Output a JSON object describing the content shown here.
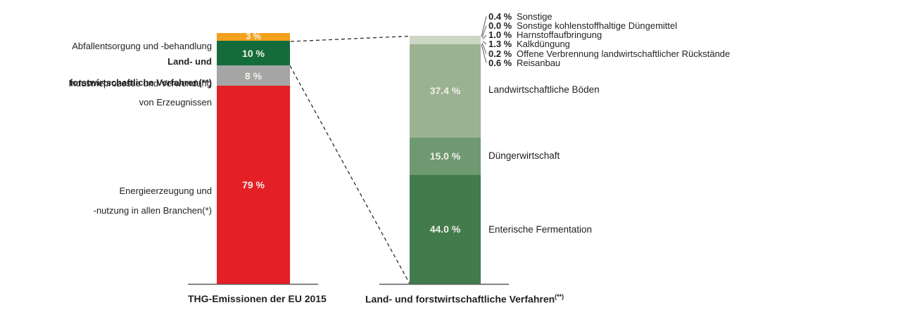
{
  "figure": {
    "background": "#ffffff",
    "text_color": "#231f20",
    "line_color": "#58595b",
    "bar_value_label_color": "#f3f0e8"
  },
  "chart_data": [
    {
      "type": "bar",
      "stacked": true,
      "axis_title": "THG-Emissionen der EU 2015",
      "value_unit": "%",
      "ylim": [
        0,
        100
      ],
      "grid": false,
      "segments": [
        {
          "category": "Abfallentsorgung und -behandlung",
          "value": 3,
          "value_label": "3 %",
          "color": "#f4a11d"
        },
        {
          "category": "Land- und forstwirtschaftliche Verfahren(**)",
          "value": 10,
          "value_label": "10 %",
          "color": "#156c3b"
        },
        {
          "category": "Industrieprozesse und Verwendung von Erzeugnissen",
          "value": 8,
          "value_label": "8 %",
          "color": "#a5a5a5"
        },
        {
          "category": "Energieerzeugung und -nutzung in allen Branchen(*)",
          "value": 79,
          "value_label": "79 %",
          "color": "#e41f26"
        }
      ]
    },
    {
      "type": "bar",
      "stacked": true,
      "axis_title": "Land- und forstwirtschaftliche Verfahren(**)",
      "value_unit": "%",
      "ylim": [
        0,
        100
      ],
      "grid": false,
      "segments": [
        {
          "category": "",
          "value": 3.5,
          "value_label": "",
          "color": "#cbd6c4",
          "breakdown": [
            {
              "value": 0.4,
              "value_label": "0.4 %",
              "category": "Sonstige"
            },
            {
              "value": 0.0,
              "value_label": "0.0 %",
              "category": "Sonstige kohlenstoffhaltige Düngemittel"
            },
            {
              "value": 1.0,
              "value_label": "1.0 %",
              "category": "Harnstoffaufbringung"
            },
            {
              "value": 1.3,
              "value_label": "1.3 %",
              "category": "Kalkdüngung"
            },
            {
              "value": 0.2,
              "value_label": "0.2 %",
              "category": "Offene Verbrennung landwirtschaftlicher Rückstände"
            },
            {
              "value": 0.6,
              "value_label": "0.6 %",
              "category": "Reisanbau"
            }
          ]
        },
        {
          "category": "Landwirtschaftliche Böden",
          "value": 37.4,
          "value_label": "37.4 %",
          "color": "#9bb291"
        },
        {
          "category": "Düngerwirtschaft",
          "value": 15.0,
          "value_label": "15.0 %",
          "color": "#6f9971"
        },
        {
          "category": "Enterische Fermentation",
          "value": 44.0,
          "value_label": "44.0 %",
          "color": "#427c4d"
        }
      ]
    }
  ],
  "left_chart": {
    "axis_title": "THG-Emissionen der EU 2015",
    "category_labels": [
      {
        "line1": "Abfallentsorgung und -behandlung",
        "line2": ""
      },
      {
        "line1": "Land- und",
        "line2": "forstwirtschaftliche Verfahren(**)"
      },
      {
        "line1": "Industrieprozesse und Verwendung",
        "line2": "von Erzeugnissen"
      },
      {
        "line1": "Energieerzeugung und",
        "line2": "-nutzung in allen Branchen(*)"
      }
    ]
  },
  "right_chart": {
    "axis_title": "Land- und forstwirtschaftliche Verfahren",
    "axis_title_sup": "(**)",
    "side_labels": [
      "Landwirtschaftliche Böden",
      "Düngerwirtschaft",
      "Enterische Fermentation"
    ],
    "mini_legend": [
      {
        "pct": "0.4 %",
        "label": "Sonstige"
      },
      {
        "pct": "0.0 %",
        "label": "Sonstige kohlenstoffhaltige Düngemittel"
      },
      {
        "pct": "1.0 %",
        "label": "Harnstoffaufbringung"
      },
      {
        "pct": "1.3 %",
        "label": "Kalkdüngung"
      },
      {
        "pct": "0.2 %",
        "label": "Offene Verbrennung landwirtschaftlicher Rückstände"
      },
      {
        "pct": "0.6 %",
        "label": "Reisanbau"
      }
    ]
  }
}
